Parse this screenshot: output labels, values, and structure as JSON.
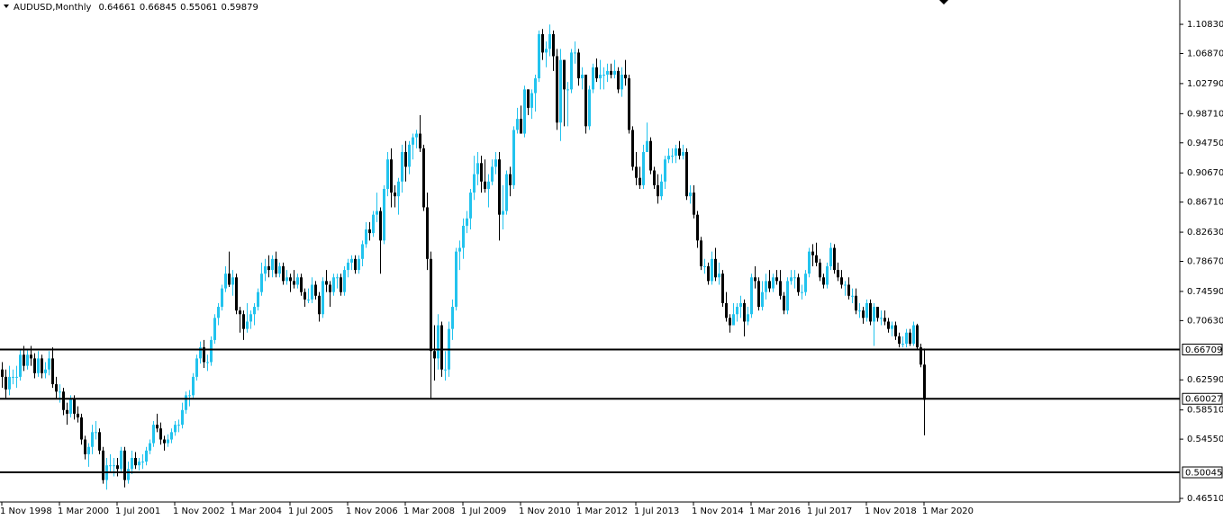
{
  "chart_data": {
    "type": "candlestick",
    "title": "AUDUSD,Monthly",
    "up_color": "#22c3ee",
    "down_color": "#000000",
    "ylim": [
      0.4602,
      1.1413
    ],
    "yticks": [
      {
        "value": 1.1083,
        "label": "1.10830"
      },
      {
        "value": 1.0687,
        "label": "1.06870"
      },
      {
        "value": 1.0279,
        "label": "1.02790"
      },
      {
        "value": 0.9871,
        "label": "0.98710"
      },
      {
        "value": 0.9475,
        "label": "0.94750"
      },
      {
        "value": 0.9067,
        "label": "0.90670"
      },
      {
        "value": 0.8671,
        "label": "0.86710"
      },
      {
        "value": 0.8263,
        "label": "0.82630"
      },
      {
        "value": 0.7867,
        "label": "0.78670"
      },
      {
        "value": 0.7459,
        "label": "0.74590"
      },
      {
        "value": 0.7063,
        "label": "0.70630"
      },
      {
        "value": 0.6259,
        "label": "0.62590"
      },
      {
        "value": 0.5851,
        "label": "0.58510"
      },
      {
        "value": 0.5455,
        "label": "0.54550"
      },
      {
        "value": 0.4651,
        "label": "0.46510"
      }
    ],
    "levels": [
      0.66709,
      0.60027,
      0.50045
    ],
    "xticks": [
      {
        "value": 0,
        "label": "1 Nov 1998"
      },
      {
        "value": 16,
        "label": "1 Mar 2000"
      },
      {
        "value": 32,
        "label": "1 Jul 2001"
      },
      {
        "value": 48,
        "label": "1 Nov 2002"
      },
      {
        "value": 64,
        "label": "1 Mar 2004"
      },
      {
        "value": 80,
        "label": "1 Jul 2005"
      },
      {
        "value": 96,
        "label": "1 Nov 2006"
      },
      {
        "value": 112,
        "label": "1 Mar 2008"
      },
      {
        "value": 128,
        "label": "1 Jul 2009"
      },
      {
        "value": 144,
        "label": "1 Nov 2010"
      },
      {
        "value": 160,
        "label": "1 Mar 2012"
      },
      {
        "value": 176,
        "label": "1 Jul 2013"
      },
      {
        "value": 192,
        "label": "1 Nov 2014"
      },
      {
        "value": 208,
        "label": "1 Mar 2016"
      },
      {
        "value": 224,
        "label": "1 Jul 2017"
      },
      {
        "value": 240,
        "label": "1 Nov 2018"
      },
      {
        "value": 256,
        "label": "1 Mar 2020"
      }
    ],
    "open": [
      0.64,
      0.63,
      0.613,
      0.63,
      0.63,
      0.63,
      0.66,
      0.645,
      0.66,
      0.655,
      0.635,
      0.655,
      0.635,
      0.64,
      0.655,
      0.62,
      0.61,
      0.61,
      0.585,
      0.58,
      0.6,
      0.58,
      0.575,
      0.545,
      0.525,
      0.535,
      0.555,
      0.555,
      0.53,
      0.49,
      0.51,
      0.51,
      0.51,
      0.505,
      0.53,
      0.49,
      0.505,
      0.52,
      0.51,
      0.515,
      0.515,
      0.53,
      0.54,
      0.565,
      0.56,
      0.545,
      0.54,
      0.545,
      0.555,
      0.565,
      0.565,
      0.585,
      0.605,
      0.605,
      0.63,
      0.655,
      0.67,
      0.65,
      0.65,
      0.68,
      0.71,
      0.725,
      0.75,
      0.77,
      0.755,
      0.765,
      0.72,
      0.715,
      0.695,
      0.705,
      0.715,
      0.725,
      0.745,
      0.77,
      0.78,
      0.775,
      0.79,
      0.77,
      0.78,
      0.76,
      0.765,
      0.76,
      0.755,
      0.765,
      0.745,
      0.735,
      0.735,
      0.755,
      0.74,
      0.715,
      0.76,
      0.755,
      0.745,
      0.765,
      0.765,
      0.745,
      0.775,
      0.785,
      0.79,
      0.775,
      0.79,
      0.81,
      0.83,
      0.825,
      0.85,
      0.855,
      0.815,
      0.885,
      0.925,
      0.88,
      0.875,
      0.895,
      0.935,
      0.915,
      0.945,
      0.955,
      0.96,
      0.94,
      0.86,
      0.79,
      0.665,
      0.655,
      0.7,
      0.64,
      0.64,
      0.695,
      0.725,
      0.8,
      0.805,
      0.835,
      0.845,
      0.88,
      0.905,
      0.92,
      0.895,
      0.885,
      0.895,
      0.915,
      0.925,
      0.85,
      0.855,
      0.905,
      0.89,
      0.965,
      0.98,
      0.96,
      1.02,
      0.995,
      1.015,
      1.035,
      1.095,
      1.07,
      1.075,
      1.095,
      1.065,
      0.975,
      1.06,
      1.02,
      1.02,
      1.07,
      1.07,
      1.035,
      1.04,
      0.97,
      1.02,
      1.05,
      1.035,
      1.04,
      1.04,
      1.045,
      1.04,
      1.045,
      1.02,
      1.04,
      1.035,
      0.965,
      0.915,
      0.9,
      0.89,
      0.935,
      0.95,
      0.91,
      0.89,
      0.875,
      0.895,
      0.925,
      0.93,
      0.93,
      0.94,
      0.93,
      0.935,
      0.875,
      0.88,
      0.85,
      0.815,
      0.78,
      0.78,
      0.76,
      0.79,
      0.765,
      0.77,
      0.73,
      0.71,
      0.7,
      0.715,
      0.725,
      0.73,
      0.705,
      0.715,
      0.765,
      0.76,
      0.725,
      0.745,
      0.76,
      0.75,
      0.765,
      0.76,
      0.74,
      0.72,
      0.76,
      0.765,
      0.765,
      0.745,
      0.745,
      0.77,
      0.8,
      0.795,
      0.785,
      0.765,
      0.755,
      0.78,
      0.805,
      0.775,
      0.765,
      0.755,
      0.755,
      0.74,
      0.74,
      0.72,
      0.72,
      0.71,
      0.73,
      0.705,
      0.725,
      0.71,
      0.71,
      0.705,
      0.695,
      0.7,
      0.685,
      0.675,
      0.675,
      0.69,
      0.675,
      0.7,
      0.67,
      0.64661
    ],
    "high": [
      0.65,
      0.64,
      0.645,
      0.64,
      0.645,
      0.668,
      0.672,
      0.668,
      0.672,
      0.662,
      0.665,
      0.66,
      0.65,
      0.665,
      0.67,
      0.63,
      0.62,
      0.615,
      0.595,
      0.605,
      0.605,
      0.59,
      0.58,
      0.55,
      0.54,
      0.565,
      0.57,
      0.56,
      0.535,
      0.52,
      0.525,
      0.52,
      0.52,
      0.535,
      0.535,
      0.515,
      0.53,
      0.528,
      0.52,
      0.525,
      0.535,
      0.545,
      0.57,
      0.58,
      0.568,
      0.55,
      0.552,
      0.56,
      0.57,
      0.572,
      0.595,
      0.61,
      0.612,
      0.635,
      0.66,
      0.678,
      0.68,
      0.66,
      0.685,
      0.715,
      0.73,
      0.755,
      0.78,
      0.8,
      0.775,
      0.77,
      0.725,
      0.72,
      0.73,
      0.72,
      0.73,
      0.75,
      0.785,
      0.79,
      0.795,
      0.795,
      0.8,
      0.785,
      0.785,
      0.775,
      0.77,
      0.775,
      0.77,
      0.77,
      0.75,
      0.75,
      0.765,
      0.76,
      0.745,
      0.765,
      0.775,
      0.76,
      0.77,
      0.77,
      0.77,
      0.78,
      0.79,
      0.795,
      0.795,
      0.795,
      0.815,
      0.84,
      0.84,
      0.855,
      0.88,
      0.86,
      0.89,
      0.935,
      0.94,
      0.89,
      0.9,
      0.945,
      0.95,
      0.95,
      0.96,
      0.965,
      0.985,
      0.945,
      0.88,
      0.8,
      0.7,
      0.715,
      0.705,
      0.665,
      0.705,
      0.735,
      0.805,
      0.815,
      0.845,
      0.855,
      0.885,
      0.93,
      0.935,
      0.93,
      0.925,
      0.905,
      0.925,
      0.935,
      0.935,
      0.89,
      0.91,
      0.915,
      0.97,
      0.995,
      0.998,
      1.025,
      1.02,
      1.02,
      1.04,
      1.1,
      1.102,
      1.085,
      1.108,
      1.1,
      1.075,
      1.075,
      1.06,
      1.03,
      1.075,
      1.085,
      1.075,
      1.05,
      1.04,
      1.025,
      1.055,
      1.062,
      1.06,
      1.05,
      1.055,
      1.055,
      1.06,
      1.05,
      1.05,
      1.06,
      1.04,
      0.97,
      0.935,
      0.915,
      0.945,
      0.975,
      0.955,
      0.915,
      0.905,
      0.905,
      0.93,
      0.94,
      0.94,
      0.945,
      0.95,
      0.945,
      0.94,
      0.89,
      0.89,
      0.855,
      0.82,
      0.79,
      0.785,
      0.8,
      0.805,
      0.785,
      0.775,
      0.745,
      0.715,
      0.73,
      0.73,
      0.74,
      0.735,
      0.725,
      0.77,
      0.78,
      0.765,
      0.76,
      0.77,
      0.775,
      0.77,
      0.775,
      0.775,
      0.745,
      0.765,
      0.775,
      0.775,
      0.77,
      0.755,
      0.775,
      0.805,
      0.81,
      0.812,
      0.79,
      0.77,
      0.785,
      0.812,
      0.81,
      0.785,
      0.775,
      0.76,
      0.765,
      0.75,
      0.75,
      0.73,
      0.725,
      0.735,
      0.735,
      0.73,
      0.725,
      0.72,
      0.72,
      0.71,
      0.705,
      0.705,
      0.69,
      0.685,
      0.695,
      0.695,
      0.705,
      0.702,
      0.675,
      0.66845
    ],
    "low": [
      0.615,
      0.6,
      0.605,
      0.62,
      0.615,
      0.625,
      0.638,
      0.64,
      0.645,
      0.628,
      0.63,
      0.628,
      0.628,
      0.632,
      0.615,
      0.6,
      0.595,
      0.578,
      0.565,
      0.575,
      0.572,
      0.568,
      0.538,
      0.518,
      0.508,
      0.525,
      0.545,
      0.525,
      0.485,
      0.477,
      0.5,
      0.495,
      0.495,
      0.5,
      0.48,
      0.485,
      0.498,
      0.505,
      0.503,
      0.505,
      0.51,
      0.525,
      0.535,
      0.555,
      0.538,
      0.53,
      0.535,
      0.54,
      0.55,
      0.555,
      0.56,
      0.58,
      0.59,
      0.6,
      0.625,
      0.648,
      0.642,
      0.638,
      0.645,
      0.675,
      0.7,
      0.72,
      0.745,
      0.752,
      0.74,
      0.715,
      0.69,
      0.68,
      0.69,
      0.695,
      0.7,
      0.72,
      0.74,
      0.76,
      0.765,
      0.765,
      0.765,
      0.765,
      0.755,
      0.755,
      0.745,
      0.75,
      0.75,
      0.74,
      0.725,
      0.73,
      0.73,
      0.735,
      0.705,
      0.71,
      0.745,
      0.725,
      0.74,
      0.75,
      0.74,
      0.74,
      0.765,
      0.775,
      0.77,
      0.77,
      0.78,
      0.805,
      0.815,
      0.82,
      0.84,
      0.77,
      0.81,
      0.875,
      0.86,
      0.86,
      0.85,
      0.88,
      0.895,
      0.905,
      0.925,
      0.94,
      0.935,
      0.855,
      0.775,
      0.6008,
      0.625,
      0.64,
      0.63,
      0.625,
      0.63,
      0.68,
      0.72,
      0.775,
      0.79,
      0.825,
      0.83,
      0.87,
      0.89,
      0.88,
      0.88,
      0.86,
      0.89,
      0.905,
      0.815,
      0.83,
      0.85,
      0.875,
      0.885,
      0.96,
      0.96,
      0.955,
      0.985,
      0.98,
      0.99,
      1.03,
      1.06,
      1.05,
      1.065,
      1.045,
      0.965,
      0.95,
      0.97,
      0.97,
      1.015,
      1.055,
      1.025,
      1.02,
      0.96,
      0.965,
      1.015,
      1.03,
      1.02,
      1.02,
      1.03,
      1.035,
      1.035,
      1.015,
      1.01,
      1.025,
      0.96,
      0.91,
      0.89,
      0.885,
      0.885,
      0.935,
      0.905,
      0.885,
      0.865,
      0.87,
      0.885,
      0.92,
      0.92,
      0.92,
      0.925,
      0.925,
      0.87,
      0.865,
      0.845,
      0.805,
      0.775,
      0.77,
      0.755,
      0.755,
      0.76,
      0.755,
      0.725,
      0.705,
      0.69,
      0.7,
      0.705,
      0.71,
      0.685,
      0.7,
      0.71,
      0.75,
      0.72,
      0.72,
      0.735,
      0.745,
      0.745,
      0.755,
      0.735,
      0.715,
      0.715,
      0.755,
      0.75,
      0.74,
      0.735,
      0.74,
      0.765,
      0.78,
      0.78,
      0.76,
      0.75,
      0.75,
      0.775,
      0.77,
      0.76,
      0.75,
      0.74,
      0.735,
      0.73,
      0.715,
      0.71,
      0.702,
      0.705,
      0.7,
      0.672,
      0.705,
      0.7,
      0.7,
      0.69,
      0.685,
      0.68,
      0.67,
      0.67,
      0.67,
      0.672,
      0.672,
      0.668,
      0.643,
      0.55061
    ],
    "close": [
      0.63,
      0.613,
      0.63,
      0.63,
      0.63,
      0.66,
      0.645,
      0.66,
      0.655,
      0.635,
      0.655,
      0.635,
      0.64,
      0.655,
      0.62,
      0.61,
      0.61,
      0.585,
      0.58,
      0.6,
      0.58,
      0.575,
      0.545,
      0.525,
      0.535,
      0.555,
      0.555,
      0.53,
      0.49,
      0.51,
      0.51,
      0.51,
      0.505,
      0.53,
      0.49,
      0.505,
      0.52,
      0.51,
      0.515,
      0.515,
      0.53,
      0.54,
      0.565,
      0.56,
      0.545,
      0.54,
      0.545,
      0.555,
      0.565,
      0.565,
      0.585,
      0.605,
      0.605,
      0.63,
      0.655,
      0.67,
      0.65,
      0.65,
      0.68,
      0.71,
      0.725,
      0.75,
      0.77,
      0.755,
      0.765,
      0.72,
      0.715,
      0.695,
      0.705,
      0.715,
      0.725,
      0.745,
      0.77,
      0.78,
      0.775,
      0.79,
      0.77,
      0.78,
      0.76,
      0.765,
      0.76,
      0.755,
      0.765,
      0.745,
      0.735,
      0.735,
      0.755,
      0.74,
      0.715,
      0.76,
      0.755,
      0.745,
      0.765,
      0.765,
      0.745,
      0.775,
      0.785,
      0.79,
      0.775,
      0.79,
      0.81,
      0.83,
      0.825,
      0.85,
      0.855,
      0.815,
      0.885,
      0.925,
      0.88,
      0.875,
      0.895,
      0.935,
      0.915,
      0.945,
      0.955,
      0.96,
      0.94,
      0.86,
      0.79,
      0.665,
      0.655,
      0.7,
      0.64,
      0.64,
      0.695,
      0.725,
      0.8,
      0.805,
      0.835,
      0.845,
      0.88,
      0.905,
      0.92,
      0.895,
      0.885,
      0.895,
      0.915,
      0.925,
      0.85,
      0.855,
      0.905,
      0.89,
      0.965,
      0.98,
      0.96,
      1.02,
      0.995,
      1.015,
      1.035,
      1.095,
      1.07,
      1.075,
      1.095,
      1.065,
      0.975,
      1.06,
      1.02,
      1.02,
      1.07,
      1.07,
      1.035,
      1.04,
      0.97,
      1.02,
      1.05,
      1.035,
      1.04,
      1.04,
      1.045,
      1.04,
      1.045,
      1.02,
      1.04,
      1.035,
      0.965,
      0.915,
      0.9,
      0.89,
      0.935,
      0.95,
      0.91,
      0.89,
      0.875,
      0.895,
      0.925,
      0.93,
      0.93,
      0.94,
      0.93,
      0.935,
      0.875,
      0.88,
      0.85,
      0.815,
      0.78,
      0.78,
      0.76,
      0.79,
      0.765,
      0.77,
      0.73,
      0.71,
      0.7,
      0.715,
      0.725,
      0.73,
      0.705,
      0.715,
      0.765,
      0.76,
      0.725,
      0.745,
      0.76,
      0.75,
      0.765,
      0.76,
      0.74,
      0.72,
      0.76,
      0.765,
      0.765,
      0.745,
      0.745,
      0.77,
      0.8,
      0.795,
      0.785,
      0.765,
      0.755,
      0.78,
      0.805,
      0.775,
      0.765,
      0.755,
      0.755,
      0.74,
      0.74,
      0.72,
      0.72,
      0.71,
      0.73,
      0.705,
      0.725,
      0.71,
      0.71,
      0.705,
      0.695,
      0.7,
      0.685,
      0.675,
      0.675,
      0.69,
      0.675,
      0.7,
      0.67,
      0.6466,
      0.59879
    ]
  }
}
